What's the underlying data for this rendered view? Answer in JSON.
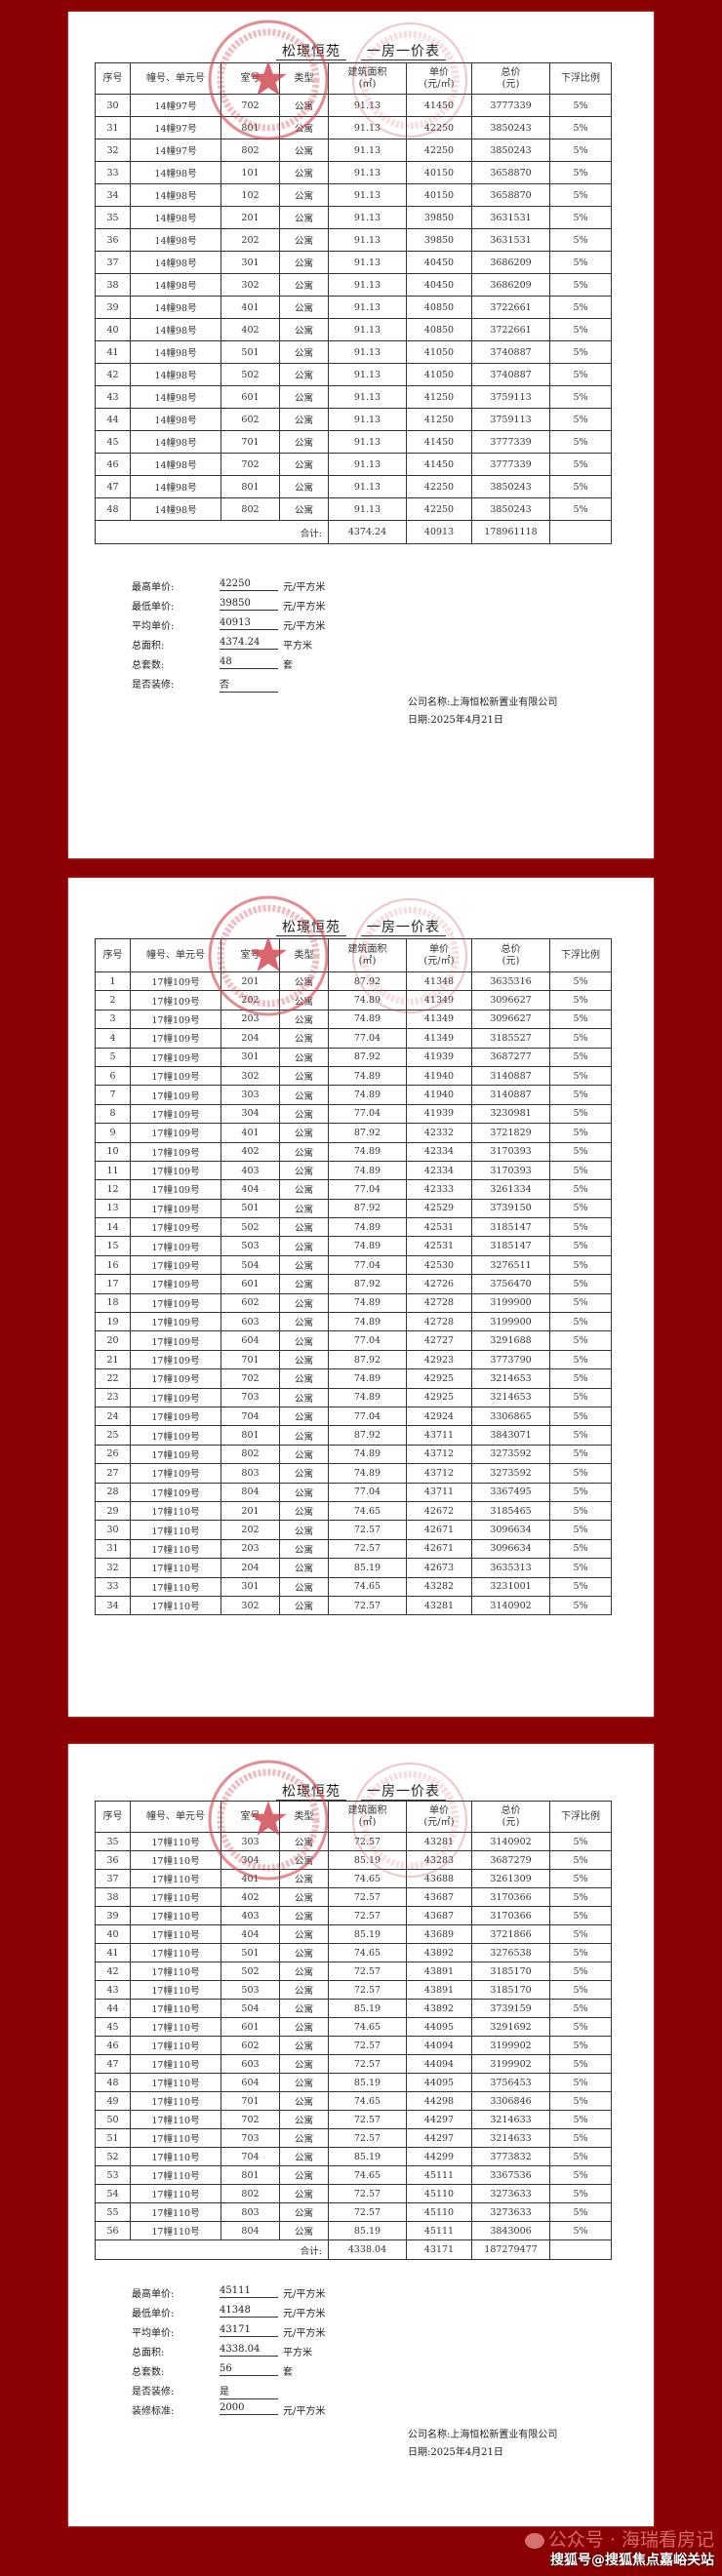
{
  "columns": [
    "序号",
    "幢号、单元号",
    "室号",
    "类型",
    "建筑面积\n(㎡)",
    "单价\n(元/㎡)",
    "总价\n(元)",
    "下浮比例"
  ],
  "title": {
    "project": "松璟恒苑",
    "doc": "一房一价表"
  },
  "stamp_color": "#d0404a",
  "background_color": "#8b0000",
  "pages": [
    {
      "rows": [
        [
          "30",
          "14幢97号",
          "702",
          "公寓",
          "91.13",
          "41450",
          "3777339",
          "5%"
        ],
        [
          "31",
          "14幢97号",
          "801",
          "公寓",
          "91.13",
          "42250",
          "3850243",
          "5%"
        ],
        [
          "32",
          "14幢97号",
          "802",
          "公寓",
          "91.13",
          "42250",
          "3850243",
          "5%"
        ],
        [
          "33",
          "14幢98号",
          "101",
          "公寓",
          "91.13",
          "40150",
          "3658870",
          "5%"
        ],
        [
          "34",
          "14幢98号",
          "102",
          "公寓",
          "91.13",
          "40150",
          "3658870",
          "5%"
        ],
        [
          "35",
          "14幢98号",
          "201",
          "公寓",
          "91.13",
          "39850",
          "3631531",
          "5%"
        ],
        [
          "36",
          "14幢98号",
          "202",
          "公寓",
          "91.13",
          "39850",
          "3631531",
          "5%"
        ],
        [
          "37",
          "14幢98号",
          "301",
          "公寓",
          "91.13",
          "40450",
          "3686209",
          "5%"
        ],
        [
          "38",
          "14幢98号",
          "302",
          "公寓",
          "91.13",
          "40450",
          "3686209",
          "5%"
        ],
        [
          "39",
          "14幢98号",
          "401",
          "公寓",
          "91.13",
          "40850",
          "3722661",
          "5%"
        ],
        [
          "40",
          "14幢98号",
          "402",
          "公寓",
          "91.13",
          "40850",
          "3722661",
          "5%"
        ],
        [
          "41",
          "14幢98号",
          "501",
          "公寓",
          "91.13",
          "41050",
          "3740887",
          "5%"
        ],
        [
          "42",
          "14幢98号",
          "502",
          "公寓",
          "91.13",
          "41050",
          "3740887",
          "5%"
        ],
        [
          "43",
          "14幢98号",
          "601",
          "公寓",
          "91.13",
          "41250",
          "3759113",
          "5%"
        ],
        [
          "44",
          "14幢98号",
          "602",
          "公寓",
          "91.13",
          "41250",
          "3759113",
          "5%"
        ],
        [
          "45",
          "14幢98号",
          "701",
          "公寓",
          "91.13",
          "41450",
          "3777339",
          "5%"
        ],
        [
          "46",
          "14幢98号",
          "702",
          "公寓",
          "91.13",
          "41450",
          "3777339",
          "5%"
        ],
        [
          "47",
          "14幢98号",
          "801",
          "公寓",
          "91.13",
          "42250",
          "3850243",
          "5%"
        ],
        [
          "48",
          "14幢98号",
          "802",
          "公寓",
          "91.13",
          "42250",
          "3850243",
          "5%"
        ]
      ],
      "total": {
        "label": "合计:",
        "area": "4374.24",
        "unit_price": "40913",
        "total_price": "178961118"
      },
      "summary": [
        {
          "label": "最高单价:",
          "value": "42250",
          "unit": "元/平方米"
        },
        {
          "label": "最低单价:",
          "value": "39850",
          "unit": "元/平方米"
        },
        {
          "label": "平均单价:",
          "value": "40913",
          "unit": "元/平方米"
        },
        {
          "label": "总面积:",
          "value": "4374.24",
          "unit": "平方米"
        },
        {
          "label": "总套数:",
          "value": "48",
          "unit": "套"
        },
        {
          "label": "是否装修:",
          "value": "否",
          "unit": ""
        }
      ],
      "company": "公司名称:上海恒松新置业有限公司",
      "date": "日期:2025年4月21日"
    },
    {
      "rows": [
        [
          "1",
          "17幢109号",
          "201",
          "公寓",
          "87.92",
          "41348",
          "3635316",
          "5%"
        ],
        [
          "2",
          "17幢109号",
          "202",
          "公寓",
          "74.89",
          "41349",
          "3096627",
          "5%"
        ],
        [
          "3",
          "17幢109号",
          "203",
          "公寓",
          "74.89",
          "41349",
          "3096627",
          "5%"
        ],
        [
          "4",
          "17幢109号",
          "204",
          "公寓",
          "77.04",
          "41349",
          "3185527",
          "5%"
        ],
        [
          "5",
          "17幢109号",
          "301",
          "公寓",
          "87.92",
          "41939",
          "3687277",
          "5%"
        ],
        [
          "6",
          "17幢109号",
          "302",
          "公寓",
          "74.89",
          "41940",
          "3140887",
          "5%"
        ],
        [
          "7",
          "17幢109号",
          "303",
          "公寓",
          "74.89",
          "41940",
          "3140887",
          "5%"
        ],
        [
          "8",
          "17幢109号",
          "304",
          "公寓",
          "77.04",
          "41939",
          "3230981",
          "5%"
        ],
        [
          "9",
          "17幢109号",
          "401",
          "公寓",
          "87.92",
          "42332",
          "3721829",
          "5%"
        ],
        [
          "10",
          "17幢109号",
          "402",
          "公寓",
          "74.89",
          "42334",
          "3170393",
          "5%"
        ],
        [
          "11",
          "17幢109号",
          "403",
          "公寓",
          "74.89",
          "42334",
          "3170393",
          "5%"
        ],
        [
          "12",
          "17幢109号",
          "404",
          "公寓",
          "77.04",
          "42333",
          "3261334",
          "5%"
        ],
        [
          "13",
          "17幢109号",
          "501",
          "公寓",
          "87.92",
          "42529",
          "3739150",
          "5%"
        ],
        [
          "14",
          "17幢109号",
          "502",
          "公寓",
          "74.89",
          "42531",
          "3185147",
          "5%"
        ],
        [
          "15",
          "17幢109号",
          "503",
          "公寓",
          "74.89",
          "42531",
          "3185147",
          "5%"
        ],
        [
          "16",
          "17幢109号",
          "504",
          "公寓",
          "77.04",
          "42530",
          "3276511",
          "5%"
        ],
        [
          "17",
          "17幢109号",
          "601",
          "公寓",
          "87.92",
          "42726",
          "3756470",
          "5%"
        ],
        [
          "18",
          "17幢109号",
          "602",
          "公寓",
          "74.89",
          "42728",
          "3199900",
          "5%"
        ],
        [
          "19",
          "17幢109号",
          "603",
          "公寓",
          "74.89",
          "42728",
          "3199900",
          "5%"
        ],
        [
          "20",
          "17幢109号",
          "604",
          "公寓",
          "77.04",
          "42727",
          "3291688",
          "5%"
        ],
        [
          "21",
          "17幢109号",
          "701",
          "公寓",
          "87.92",
          "42923",
          "3773790",
          "5%"
        ],
        [
          "22",
          "17幢109号",
          "702",
          "公寓",
          "74.89",
          "42925",
          "3214653",
          "5%"
        ],
        [
          "23",
          "17幢109号",
          "703",
          "公寓",
          "74.89",
          "42925",
          "3214653",
          "5%"
        ],
        [
          "24",
          "17幢109号",
          "704",
          "公寓",
          "77.04",
          "42924",
          "3306865",
          "5%"
        ],
        [
          "25",
          "17幢109号",
          "801",
          "公寓",
          "87.92",
          "43711",
          "3843071",
          "5%"
        ],
        [
          "26",
          "17幢109号",
          "802",
          "公寓",
          "74.89",
          "43712",
          "3273592",
          "5%"
        ],
        [
          "27",
          "17幢109号",
          "803",
          "公寓",
          "74.89",
          "43712",
          "3273592",
          "5%"
        ],
        [
          "28",
          "17幢109号",
          "804",
          "公寓",
          "77.04",
          "43711",
          "3367495",
          "5%"
        ],
        [
          "29",
          "17幢110号",
          "201",
          "公寓",
          "74.65",
          "42672",
          "3185465",
          "5%"
        ],
        [
          "30",
          "17幢110号",
          "202",
          "公寓",
          "72.57",
          "42671",
          "3096634",
          "5%"
        ],
        [
          "31",
          "17幢110号",
          "203",
          "公寓",
          "72.57",
          "42671",
          "3096634",
          "5%"
        ],
        [
          "32",
          "17幢110号",
          "204",
          "公寓",
          "85.19",
          "42673",
          "3635313",
          "5%"
        ],
        [
          "33",
          "17幢110号",
          "301",
          "公寓",
          "74.65",
          "43282",
          "3231001",
          "5%"
        ],
        [
          "34",
          "17幢110号",
          "302",
          "公寓",
          "72.57",
          "43281",
          "3140902",
          "5%"
        ]
      ]
    },
    {
      "rows": [
        [
          "35",
          "17幢110号",
          "303",
          "公寓",
          "72.57",
          "43281",
          "3140902",
          "5%"
        ],
        [
          "36",
          "17幢110号",
          "304",
          "公寓",
          "85.19",
          "43283",
          "3687279",
          "5%"
        ],
        [
          "37",
          "17幢110号",
          "401",
          "公寓",
          "74.65",
          "43688",
          "3261309",
          "5%"
        ],
        [
          "38",
          "17幢110号",
          "402",
          "公寓",
          "72.57",
          "43687",
          "3170366",
          "5%"
        ],
        [
          "39",
          "17幢110号",
          "403",
          "公寓",
          "72.57",
          "43687",
          "3170366",
          "5%"
        ],
        [
          "40",
          "17幢110号",
          "404",
          "公寓",
          "85.19",
          "43689",
          "3721866",
          "5%"
        ],
        [
          "41",
          "17幢110号",
          "501",
          "公寓",
          "74.65",
          "43892",
          "3276538",
          "5%"
        ],
        [
          "42",
          "17幢110号",
          "502",
          "公寓",
          "72.57",
          "43891",
          "3185170",
          "5%"
        ],
        [
          "43",
          "17幢110号",
          "503",
          "公寓",
          "72.57",
          "43891",
          "3185170",
          "5%"
        ],
        [
          "44",
          "17幢110号",
          "504",
          "公寓",
          "85.19",
          "43892",
          "3739159",
          "5%"
        ],
        [
          "45",
          "17幢110号",
          "601",
          "公寓",
          "74.65",
          "44095",
          "3291692",
          "5%"
        ],
        [
          "46",
          "17幢110号",
          "602",
          "公寓",
          "72.57",
          "44094",
          "3199902",
          "5%"
        ],
        [
          "47",
          "17幢110号",
          "603",
          "公寓",
          "72.57",
          "44094",
          "3199902",
          "5%"
        ],
        [
          "48",
          "17幢110号",
          "604",
          "公寓",
          "85.19",
          "44095",
          "3756453",
          "5%"
        ],
        [
          "49",
          "17幢110号",
          "701",
          "公寓",
          "74.65",
          "44298",
          "3306846",
          "5%"
        ],
        [
          "50",
          "17幢110号",
          "702",
          "公寓",
          "72.57",
          "44297",
          "3214633",
          "5%"
        ],
        [
          "51",
          "17幢110号",
          "703",
          "公寓",
          "72.57",
          "44297",
          "3214633",
          "5%"
        ],
        [
          "52",
          "17幢110号",
          "704",
          "公寓",
          "85.19",
          "44299",
          "3773832",
          "5%"
        ],
        [
          "53",
          "17幢110号",
          "801",
          "公寓",
          "74.65",
          "45111",
          "3367536",
          "5%"
        ],
        [
          "54",
          "17幢110号",
          "802",
          "公寓",
          "72.57",
          "45110",
          "3273633",
          "5%"
        ],
        [
          "55",
          "17幢110号",
          "803",
          "公寓",
          "72.57",
          "45110",
          "3273633",
          "5%"
        ],
        [
          "56",
          "17幢110号",
          "804",
          "公寓",
          "85.19",
          "45111",
          "3843006",
          "5%"
        ]
      ],
      "total": {
        "label": "合计:",
        "area": "4338.04",
        "unit_price": "43171",
        "total_price": "187279477"
      },
      "summary": [
        {
          "label": "最高单价:",
          "value": "45111",
          "unit": "元/平方米"
        },
        {
          "label": "最低单价:",
          "value": "41348",
          "unit": "元/平方米"
        },
        {
          "label": "平均单价:",
          "value": "43171",
          "unit": "元/平方米"
        },
        {
          "label": "总面积:",
          "value": "4338.04",
          "unit": "平方米"
        },
        {
          "label": "总套数:",
          "value": "56",
          "unit": "套"
        },
        {
          "label": "是否装修:",
          "value": "是",
          "unit": ""
        },
        {
          "label": "装修标准:",
          "value": "2000",
          "unit": "元/平方米"
        }
      ],
      "company": "公司名称:上海恒松新置业有限公司",
      "date": "日期:2025年4月21日"
    }
  ],
  "watermark": {
    "icon": "wechat-icon",
    "line1": "公众号 · 海瑞看房记",
    "line2": "搜狐号@搜狐焦点嘉峪关站"
  }
}
